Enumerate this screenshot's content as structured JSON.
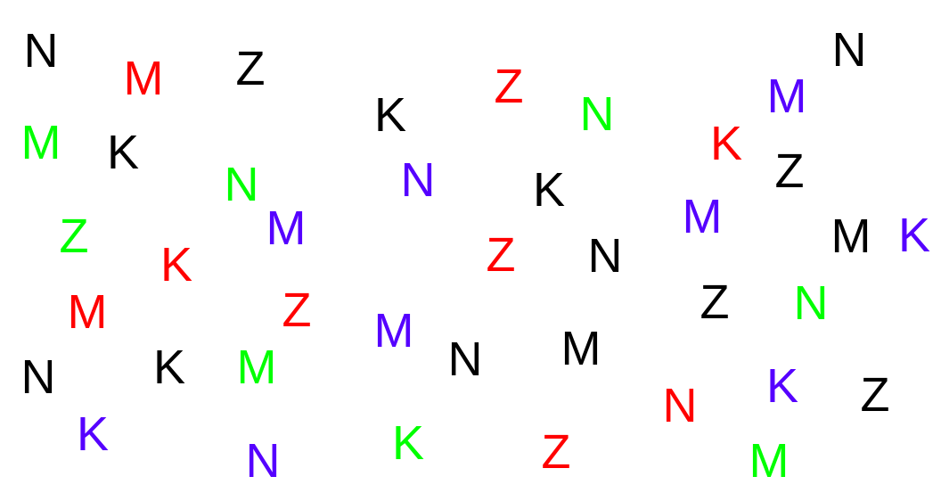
{
  "palette": {
    "black": "#000000",
    "red": "#ff0000",
    "green": "#00ff00",
    "purple": "#5500ff"
  },
  "letters": [
    {
      "char": "N",
      "color": "black"
    },
    {
      "char": "M",
      "color": "red"
    },
    {
      "char": "Z",
      "color": "black"
    },
    {
      "char": "M",
      "color": "green"
    },
    {
      "char": "K",
      "color": "black"
    },
    {
      "char": "N",
      "color": "green"
    },
    {
      "char": "M",
      "color": "purple"
    },
    {
      "char": "Z",
      "color": "green"
    },
    {
      "char": "K",
      "color": "red"
    },
    {
      "char": "M",
      "color": "red"
    },
    {
      "char": "Z",
      "color": "red"
    },
    {
      "char": "N",
      "color": "black"
    },
    {
      "char": "K",
      "color": "black"
    },
    {
      "char": "M",
      "color": "green"
    },
    {
      "char": "K",
      "color": "purple"
    },
    {
      "char": "N",
      "color": "purple"
    },
    {
      "char": "Z",
      "color": "red"
    },
    {
      "char": "K",
      "color": "black"
    },
    {
      "char": "N",
      "color": "green"
    },
    {
      "char": "N",
      "color": "purple"
    },
    {
      "char": "K",
      "color": "black"
    },
    {
      "char": "Z",
      "color": "red"
    },
    {
      "char": "N",
      "color": "black"
    },
    {
      "char": "M",
      "color": "purple"
    },
    {
      "char": "N",
      "color": "black"
    },
    {
      "char": "M",
      "color": "black"
    },
    {
      "char": "K",
      "color": "green"
    },
    {
      "char": "Z",
      "color": "red"
    },
    {
      "char": "N",
      "color": "black"
    },
    {
      "char": "M",
      "color": "purple"
    },
    {
      "char": "K",
      "color": "red"
    },
    {
      "char": "Z",
      "color": "black"
    },
    {
      "char": "M",
      "color": "purple"
    },
    {
      "char": "M",
      "color": "black"
    },
    {
      "char": "K",
      "color": "purple"
    },
    {
      "char": "Z",
      "color": "black"
    },
    {
      "char": "N",
      "color": "green"
    },
    {
      "char": "N",
      "color": "red"
    },
    {
      "char": "K",
      "color": "purple"
    },
    {
      "char": "Z",
      "color": "black"
    },
    {
      "char": "M",
      "color": "green"
    }
  ]
}
